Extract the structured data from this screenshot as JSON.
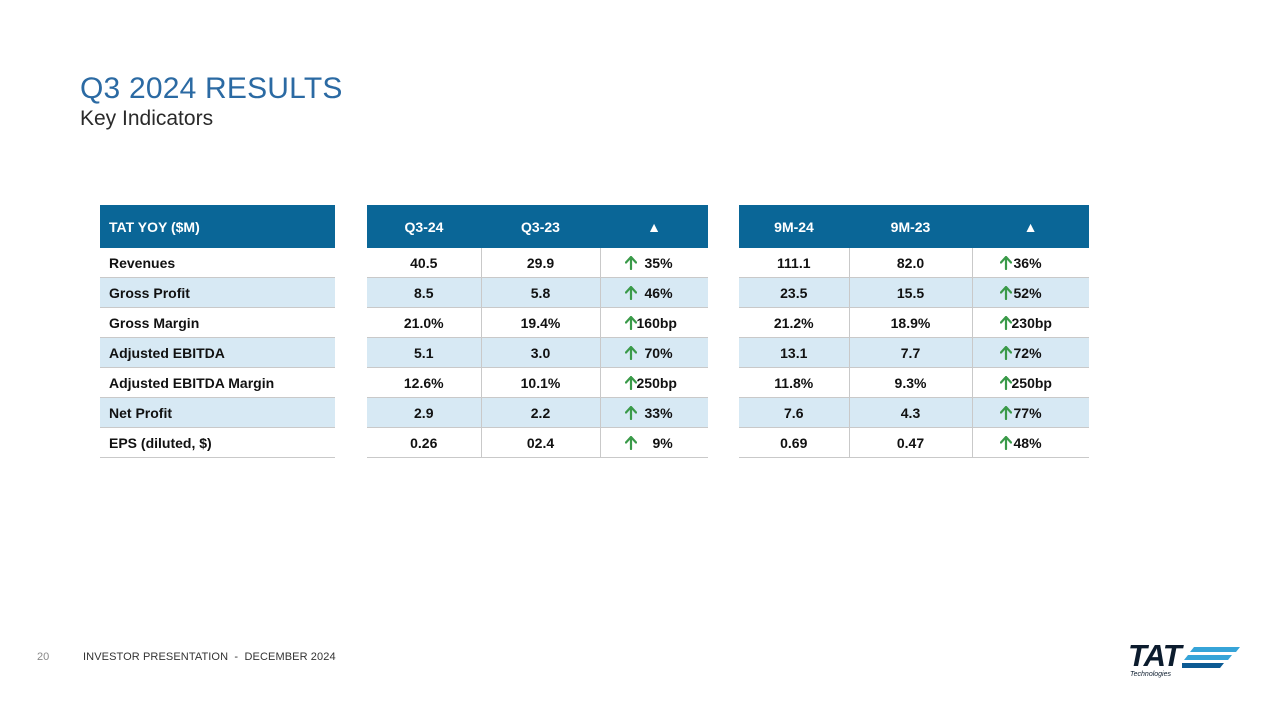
{
  "header": {
    "title": "Q3 2024 RESULTS",
    "subtitle": "Key Indicators"
  },
  "table": {
    "label_header": "TAT YOY ($M)",
    "q_headers": [
      "Q3-24",
      "Q3-23",
      "▲"
    ],
    "m_headers": [
      "9M-24",
      "9M-23",
      "▲"
    ],
    "rows": [
      {
        "label": "Revenues",
        "q": [
          "40.5",
          "29.9",
          "35%"
        ],
        "m": [
          "111.1",
          "82.0",
          "36%"
        ]
      },
      {
        "label": "Gross Profit",
        "q": [
          "8.5",
          "5.8",
          "46%"
        ],
        "m": [
          "23.5",
          "15.5",
          "52%"
        ]
      },
      {
        "label": "Gross Margin",
        "q": [
          "21.0%",
          "19.4%",
          "160bp"
        ],
        "m": [
          "21.2%",
          "18.9%",
          "230bp"
        ]
      },
      {
        "label": "Adjusted EBITDA",
        "q": [
          "5.1",
          "3.0",
          "70%"
        ],
        "m": [
          "13.1",
          "7.7",
          "72%"
        ]
      },
      {
        "label": "Adjusted EBITDA Margin",
        "q": [
          "12.6%",
          "10.1%",
          "250bp"
        ],
        "m": [
          "11.8%",
          "9.3%",
          "250bp"
        ]
      },
      {
        "label": "Net Profit",
        "q": [
          "2.9",
          "2.2",
          "33%"
        ],
        "m": [
          "7.6",
          "4.3",
          "77%"
        ]
      },
      {
        "label": "EPS (diluted, $)",
        "q": [
          "0.26",
          "02.4",
          "9%"
        ],
        "m": [
          "0.69",
          "0.47",
          "48%"
        ]
      }
    ]
  },
  "footer": {
    "page_number": "20",
    "text": "INVESTOR PRESENTATION  -  DECEMBER 2024",
    "logo_word": "TAT",
    "logo_sub": "Technologies"
  },
  "colors": {
    "header_fill": "#0a6697",
    "alt_row": "#d7e9f4",
    "title": "#2b6aa3",
    "up_arrow": "#3a9a49"
  },
  "icons": {
    "change_indicator": "up-arrow-icon"
  }
}
